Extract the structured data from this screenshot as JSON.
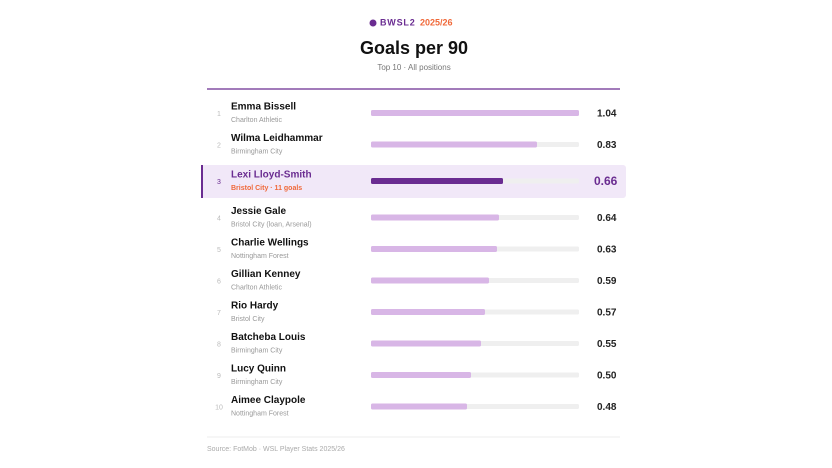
{
  "chart_data": {
    "type": "bar",
    "orientation": "horizontal",
    "badge": "BWSL2",
    "season": "2025/26",
    "title": "Goals per 90",
    "subtitle": "Top 10 · All positions",
    "ranks": [
      "1",
      "2",
      "3",
      "4",
      "5",
      "6",
      "7",
      "8",
      "9",
      "10"
    ],
    "categories": [
      "Emma Bissell",
      "Wilma Leidhammar",
      "Lexi Lloyd-Smith",
      "Jessie Gale",
      "Charlie Wellings",
      "Gillian Kenney",
      "Rio Hardy",
      "Batcheba Louis",
      "Lucy Quinn",
      "Aimee Claypole"
    ],
    "clubs": [
      "Charlton Athletic",
      "Birmingham City",
      "Bristol City · 11 goals",
      "Bristol City (loan, Arsenal)",
      "Nottingham Forest",
      "Charlton Athletic",
      "Bristol City",
      "Birmingham City",
      "Birmingham City",
      "Nottingham Forest"
    ],
    "values": [
      1.04,
      0.83,
      0.66,
      0.64,
      0.63,
      0.59,
      0.57,
      0.55,
      0.5,
      0.48
    ],
    "value_labels": [
      "1.04",
      "0.83",
      "0.66",
      "0.64",
      "0.63",
      "0.59",
      "0.57",
      "0.55",
      "0.50",
      "0.48"
    ],
    "xlim": [
      0,
      1.04
    ],
    "color": "#d8b6e6",
    "highlight_color": "#6a2c91",
    "accent_color": "#f0693a",
    "highlight_index": 2,
    "source": "Source: FotMob · WSL Player Stats 2025/26"
  }
}
